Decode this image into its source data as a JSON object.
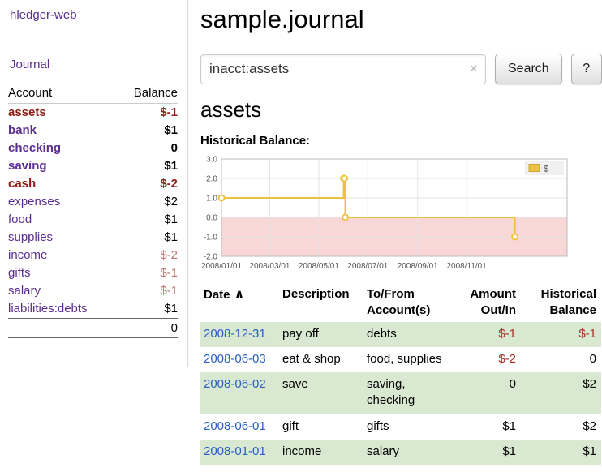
{
  "colors": {
    "link_purple": "#5c2d91",
    "link_blue": "#2a5fc4",
    "negative": "#a5302a",
    "negative_bold": "#8f1d16",
    "negative_light": "#c2706c",
    "row_green": "#d9e8d0",
    "chart_series": "#edc240",
    "chart_negative_region": "#f9d7d7"
  },
  "sidebar": {
    "app_title": "hledger-web",
    "nav": {
      "journal_label": "Journal"
    },
    "accounts_table": {
      "headers": {
        "account": "Account",
        "balance": "Balance"
      },
      "rows": [
        {
          "name": "assets",
          "balance": "$-1",
          "indent": 1,
          "selected": true
        },
        {
          "name": "bank",
          "balance": "$1",
          "indent": 2,
          "selected": true
        },
        {
          "name": "checking",
          "balance": "0",
          "indent": 3,
          "selected": true
        },
        {
          "name": "saving",
          "balance": "$1",
          "indent": 3,
          "selected": true
        },
        {
          "name": "cash",
          "balance": "$-2",
          "indent": 2,
          "selected": true
        },
        {
          "name": "expenses",
          "balance": "$2",
          "indent": 1,
          "selected": false
        },
        {
          "name": "food",
          "balance": "$1",
          "indent": 2,
          "selected": false
        },
        {
          "name": "supplies",
          "balance": "$1",
          "indent": 2,
          "selected": false
        },
        {
          "name": "income",
          "balance": "$-2",
          "indent": 1,
          "selected": false
        },
        {
          "name": "gifts",
          "balance": "$-1",
          "indent": 2,
          "selected": false
        },
        {
          "name": "salary",
          "balance": "$-1",
          "indent": 2,
          "selected": false
        },
        {
          "name": "liabilities:debts",
          "balance": "$1",
          "indent": 1,
          "selected": false
        }
      ],
      "total": "0"
    }
  },
  "main": {
    "title": "sample.journal",
    "search": {
      "value": "inacct:assets",
      "clear_icon": "×",
      "button_label": "Search",
      "help_label": "?"
    },
    "account_heading": "assets",
    "chart_label": "Historical Balance:",
    "register": {
      "headers": {
        "date": "Date",
        "sort_icon": "∧",
        "description": "Description",
        "to_from": "To/From Account(s)",
        "amount": "Amount Out/In",
        "balance": "Historical Balance"
      },
      "rows": [
        {
          "date": "2008-12-31",
          "description": "pay off",
          "to_from": "debts",
          "amount": "$-1",
          "balance": "$-1"
        },
        {
          "date": "2008-06-03",
          "description": "eat & shop",
          "to_from": "food, supplies",
          "amount": "$-2",
          "balance": "0"
        },
        {
          "date": "2008-06-02",
          "description": "save",
          "to_from": "saving, checking",
          "amount": "0",
          "balance": "$2"
        },
        {
          "date": "2008-06-01",
          "description": "gift",
          "to_from": "gifts",
          "amount": "$1",
          "balance": "$2"
        },
        {
          "date": "2008-01-01",
          "description": "income",
          "to_from": "salary",
          "amount": "$1",
          "balance": "$1"
        }
      ]
    }
  },
  "chart_data": {
    "type": "line",
    "title": "Historical Balance",
    "step": true,
    "series": [
      {
        "name": "$",
        "color": "#edc240",
        "points": [
          {
            "date": "2008-01-01",
            "value": 1
          },
          {
            "date": "2008-06-01",
            "value": 2
          },
          {
            "date": "2008-06-02",
            "value": 2
          },
          {
            "date": "2008-06-03",
            "value": 0
          },
          {
            "date": "2008-12-31",
            "value": -1
          }
        ]
      }
    ],
    "ylim": [
      -2,
      3
    ],
    "yticks": [
      3.0,
      2.0,
      1.0,
      0.0,
      -1.0,
      -2.0
    ],
    "xticks": [
      "2008/01/01",
      "2008/03/01",
      "2008/05/01",
      "2008/07/01",
      "2008/09/01",
      "2008/11/01"
    ],
    "xlim_days": [
      0,
      430
    ],
    "grid": true,
    "legend_position": "top-right",
    "negative_region_color": "#f9d7d7"
  }
}
